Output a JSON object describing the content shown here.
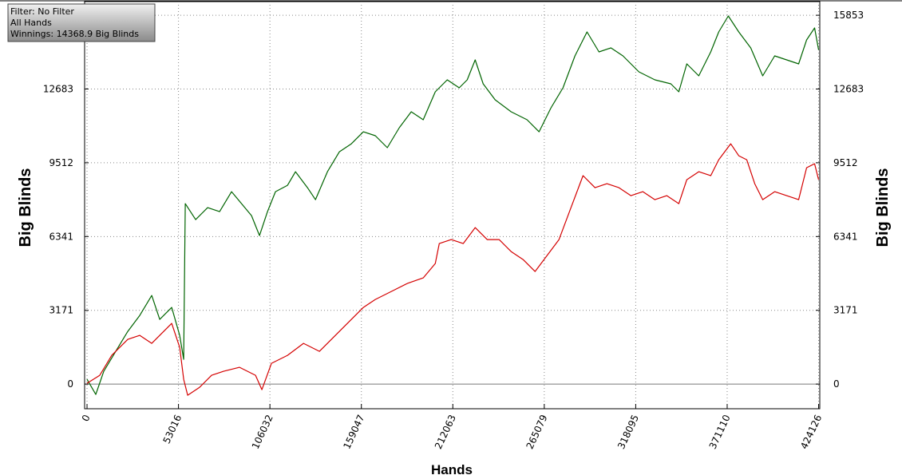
{
  "chart_data": {
    "type": "line",
    "info": [
      "Filter: No Filter",
      "All Hands",
      "Winnings: 14368.9 Big Blinds"
    ],
    "y_label": "Big Blinds",
    "y2_label": "Big Blinds",
    "x_label": "Hands",
    "xlim": [
      -1400,
      424800
    ],
    "ylim": [
      -1060,
      16440
    ],
    "xticks": [
      0,
      53016,
      106032,
      159047,
      212063,
      265079,
      318095,
      371110,
      424126
    ],
    "yticks": [
      0,
      3171,
      6341,
      9512,
      12683,
      15853
    ],
    "grid": true,
    "series": [
      {
        "color": "#006400",
        "x": [
          0,
          5093,
          9723,
          16668,
          23613,
          30558,
          37503,
          42133,
          49078,
          53708,
          56023,
          56949,
          62968,
          69913,
          76858,
          83803,
          90748,
          95378,
          100008,
          104638,
          109268,
          116213,
          120843,
          127788,
          132418,
          139363,
          146308,
          153253,
          160198,
          167143,
          174088,
          181033,
          187978,
          194923,
          201868,
          208813,
          215758,
          220388,
          225018,
          229648,
          236593,
          245853,
          255113,
          262058,
          269003,
          275948,
          282893,
          289838,
          296783,
          303728,
          310673,
          319933,
          329193,
          338453,
          343083,
          347713,
          354658,
          361603,
          366233,
          371789,
          377808,
          384753,
          391698,
          398643,
          405588,
          412533,
          417163,
          421793,
          424126
        ],
        "values": [
          206,
          -446,
          549,
          1407,
          2265,
          2952,
          3810,
          2780,
          3295,
          2094,
          1064,
          7756,
          7070,
          7585,
          7413,
          8271,
          7653,
          7242,
          6384,
          7413,
          8271,
          8546,
          9129,
          8443,
          7928,
          9129,
          9987,
          10330,
          10845,
          10674,
          10159,
          11017,
          11703,
          11360,
          12561,
          13076,
          12733,
          13076,
          13934,
          12904,
          12218,
          11703,
          11360,
          10845,
          11875,
          12733,
          14106,
          15135,
          14277,
          14449,
          14106,
          13419,
          13076,
          12904,
          12561,
          13762,
          13248,
          14277,
          15135,
          15822,
          15135,
          14449,
          13248,
          14106,
          13934,
          13762,
          14792,
          15307,
          14369
        ]
      },
      {
        "color": "#d40000",
        "x": [
          0,
          7408,
          14353,
          23613,
          30558,
          37503,
          44448,
          49078,
          53708,
          56023,
          58338,
          65283,
          72228,
          79173,
          88433,
          97693,
          101397,
          106953,
          116213,
          125473,
          134733,
          143993,
          153253,
          160198,
          167143,
          176403,
          185663,
          194923,
          201868,
          204183,
          211128,
          218073,
          225018,
          231963,
          238908,
          245853,
          252798,
          259743,
          266688,
          273633,
          280578,
          287523,
          294468,
          301413,
          308358,
          315303,
          322248,
          329193,
          336138,
          343083,
          347713,
          354658,
          361603,
          366233,
          373178,
          377808,
          382438,
          387068,
          391698,
          398643,
          405588,
          412533,
          417163,
          421793,
          424126
        ],
        "values": [
          34,
          378,
          1235,
          1922,
          2094,
          1750,
          2265,
          2608,
          1579,
          206,
          -480,
          -137,
          378,
          549,
          721,
          378,
          -240,
          892,
          1235,
          1750,
          1407,
          2094,
          2780,
          3295,
          3638,
          3981,
          4324,
          4565,
          5182,
          6040,
          6212,
          6040,
          6727,
          6212,
          6212,
          5697,
          5354,
          4839,
          5525,
          6212,
          7585,
          8958,
          8443,
          8614,
          8443,
          8100,
          8271,
          7928,
          8100,
          7756,
          8786,
          9129,
          8958,
          9644,
          10330,
          9815,
          9644,
          8614,
          7928,
          8271,
          8100,
          7928,
          9301,
          9472,
          8786
        ]
      }
    ]
  }
}
